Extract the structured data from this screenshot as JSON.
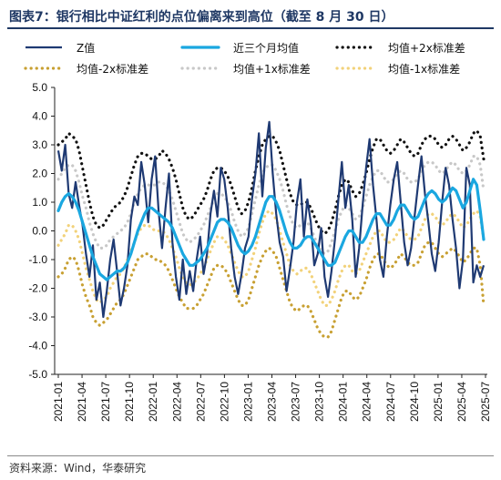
{
  "header": {
    "figure_label": "图表7：",
    "title": "银行相比中证红利的点位偏离来到高位（截至 8 月 30 日）"
  },
  "footer": {
    "source": "资料来源：Wind，华泰研究"
  },
  "chart_data": {
    "type": "line",
    "x_ticks": [
      "2021-01",
      "2021-04",
      "2021-07",
      "2021-10",
      "2022-01",
      "2022-04",
      "2022-07",
      "2022-10",
      "2023-01",
      "2023-04",
      "2023-07",
      "2023-10",
      "2024-01",
      "2024-04",
      "2024-07",
      "2024-10",
      "2025-01",
      "2025-04",
      "2025-07"
    ],
    "ylim": [
      -5.0,
      5.0
    ],
    "y_ticks": [
      "5.0",
      "4.0",
      "3.0",
      "2.0",
      "1.0",
      "0.0",
      "-1.0",
      "-2.0",
      "-3.0",
      "-4.0",
      "-5.0"
    ],
    "legend_position": "top",
    "colors": {
      "z": "#1f3a73",
      "ma3": "#1aa7e0",
      "plus2": "#111111",
      "minus2": "#c8a032",
      "plus1": "#c8c8c8",
      "minus1": "#f2d27a"
    },
    "series": [
      {
        "name": "Z值",
        "key": "z",
        "note": "",
        "values": [
          2.8,
          2.1,
          3.0,
          1.3,
          0.8,
          1.7,
          0.9,
          0.2,
          -0.8,
          -1.6,
          -0.5,
          -2.4,
          -1.8,
          -3.0,
          -2.1,
          -1.0,
          -0.3,
          -1.4,
          -2.6,
          -2.0,
          -1.2,
          0.4,
          1.2,
          0.9,
          2.4,
          1.6,
          0.3,
          1.8,
          2.6,
          0.7,
          -0.6,
          0.8,
          2.0,
          -0.4,
          -1.6,
          -2.4,
          -1.0,
          -2.2,
          -1.4,
          -2.1,
          -1.0,
          -0.2,
          -1.5,
          -0.8,
          0.6,
          1.4,
          0.5,
          2.2,
          1.8,
          0.8,
          -0.6,
          -1.6,
          -2.2,
          -1.5,
          -0.6,
          -0.2,
          1.1,
          2.0,
          3.4,
          1.2,
          2.9,
          3.8,
          2.0,
          0.6,
          -0.4,
          -0.9,
          -2.1,
          -1.3,
          -0.4,
          1.0,
          1.8,
          -0.2,
          1.1,
          0.3,
          -1.2,
          -0.8,
          0.1,
          -1.6,
          -2.3,
          -1.4,
          -0.3,
          1.1,
          2.4,
          0.8,
          1.6,
          0.4,
          -1.6,
          -0.6,
          0.9,
          2.2,
          3.2,
          1.6,
          0.4,
          -1.0,
          -1.6,
          -0.2,
          0.9,
          1.8,
          2.4,
          1.0,
          -0.4,
          -1.2,
          -0.6,
          0.5,
          1.6,
          2.6,
          1.3,
          0.3,
          -0.8,
          -1.4,
          -0.4,
          1.0,
          2.2,
          1.6,
          0.4,
          -0.6,
          -2.0,
          -1.0,
          2.2,
          1.6,
          -1.8,
          -1.2,
          -1.6,
          -1.2
        ]
      },
      {
        "name": "近三个月均值",
        "key": "ma3",
        "values": [
          0.7,
          1.0,
          1.2,
          1.3,
          1.2,
          1.0,
          0.7,
          0.3,
          -0.1,
          -0.5,
          -0.9,
          -1.2,
          -1.5,
          -1.6,
          -1.7,
          -1.6,
          -1.5,
          -1.4,
          -1.4,
          -1.3,
          -1.1,
          -0.8,
          -0.4,
          0.0,
          0.3,
          0.6,
          0.8,
          0.8,
          0.7,
          0.6,
          0.5,
          0.4,
          0.3,
          0.1,
          -0.2,
          -0.5,
          -0.8,
          -1.0,
          -1.2,
          -1.2,
          -1.1,
          -1.0,
          -0.8,
          -0.6,
          -0.3,
          0.0,
          0.3,
          0.4,
          0.4,
          0.3,
          0.1,
          -0.2,
          -0.5,
          -0.7,
          -0.8,
          -0.7,
          -0.5,
          -0.2,
          0.2,
          0.6,
          1.0,
          1.2,
          1.2,
          1.0,
          0.7,
          0.3,
          -0.1,
          -0.4,
          -0.6,
          -0.6,
          -0.5,
          -0.3,
          -0.2,
          -0.2,
          -0.4,
          -0.6,
          -0.8,
          -1.0,
          -1.2,
          -1.2,
          -1.1,
          -0.8,
          -0.5,
          -0.2,
          0.0,
          0.0,
          -0.2,
          -0.4,
          -0.4,
          -0.2,
          0.1,
          0.4,
          0.6,
          0.6,
          0.4,
          0.2,
          0.2,
          0.4,
          0.7,
          0.9,
          0.9,
          0.7,
          0.5,
          0.4,
          0.5,
          0.8,
          1.1,
          1.3,
          1.4,
          1.3,
          1.1,
          1.0,
          1.1,
          1.3,
          1.5,
          1.4,
          1.1,
          0.8,
          1.0,
          1.4,
          1.8,
          1.6,
          0.7,
          -0.3
        ]
      },
      {
        "name": "均值+2x标准差",
        "key": "plus2",
        "values": [
          3.0,
          3.1,
          3.2,
          3.4,
          3.3,
          3.2,
          2.8,
          2.2,
          1.6,
          1.0,
          0.5,
          0.2,
          0.1,
          0.2,
          0.4,
          0.6,
          0.8,
          0.9,
          1.0,
          1.2,
          1.5,
          1.9,
          2.3,
          2.6,
          2.7,
          2.7,
          2.6,
          2.5,
          2.5,
          2.6,
          2.8,
          2.7,
          2.5,
          2.2,
          1.8,
          1.3,
          0.8,
          0.5,
          0.4,
          0.5,
          0.7,
          0.9,
          1.1,
          1.4,
          1.8,
          2.1,
          2.2,
          2.2,
          2.1,
          1.9,
          1.6,
          1.2,
          0.8,
          0.6,
          0.7,
          1.0,
          1.5,
          2.1,
          2.6,
          3.0,
          3.2,
          3.3,
          3.3,
          3.1,
          2.8,
          2.3,
          1.8,
          1.3,
          1.0,
          0.9,
          0.9,
          1.0,
          1.0,
          0.8,
          0.5,
          0.2,
          0.0,
          -0.1,
          0.0,
          0.3,
          0.7,
          1.2,
          1.6,
          1.8,
          1.7,
          1.4,
          1.2,
          1.3,
          1.6,
          2.0,
          2.5,
          2.9,
          3.2,
          3.2,
          3.0,
          2.8,
          2.7,
          2.8,
          3.0,
          3.2,
          3.1,
          2.9,
          2.7,
          2.6,
          2.7,
          3.0,
          3.2,
          3.3,
          3.3,
          3.2,
          3.0,
          2.9,
          3.0,
          3.2,
          3.3,
          3.2,
          3.0,
          2.8,
          2.9,
          3.1,
          3.4,
          3.5,
          3.3,
          2.5
        ]
      },
      {
        "name": "均值+1x标准差",
        "key": "plus1",
        "values": [
          1.8,
          2.0,
          2.2,
          2.3,
          2.3,
          2.1,
          1.7,
          1.2,
          0.8,
          0.3,
          -0.1,
          -0.4,
          -0.6,
          -0.6,
          -0.5,
          -0.3,
          -0.2,
          -0.1,
          0.0,
          0.1,
          0.3,
          0.6,
          1.0,
          1.3,
          1.5,
          1.6,
          1.6,
          1.6,
          1.6,
          1.7,
          1.7,
          1.6,
          1.4,
          1.1,
          0.7,
          0.3,
          -0.1,
          -0.3,
          -0.4,
          -0.3,
          -0.2,
          0.0,
          0.2,
          0.5,
          0.8,
          1.1,
          1.3,
          1.3,
          1.2,
          1.0,
          0.7,
          0.3,
          0.0,
          -0.2,
          -0.1,
          0.1,
          0.6,
          1.1,
          1.6,
          2.0,
          2.2,
          2.3,
          2.3,
          2.1,
          1.8,
          1.4,
          0.9,
          0.5,
          0.2,
          0.1,
          0.2,
          0.3,
          0.3,
          0.1,
          -0.2,
          -0.5,
          -0.7,
          -0.8,
          -0.7,
          -0.4,
          0.0,
          0.4,
          0.7,
          0.9,
          0.8,
          0.6,
          0.4,
          0.5,
          0.8,
          1.2,
          1.6,
          1.9,
          2.1,
          2.1,
          1.9,
          1.7,
          1.7,
          1.8,
          2.0,
          2.1,
          2.0,
          1.8,
          1.7,
          1.7,
          1.8,
          2.1,
          2.3,
          2.4,
          2.4,
          2.3,
          2.1,
          2.0,
          2.1,
          2.3,
          2.4,
          2.3,
          2.1,
          2.0,
          2.1,
          2.3,
          2.6,
          2.6,
          2.3,
          1.4
        ]
      },
      {
        "name": "均值-1x标准差",
        "key": "minus1",
        "values": [
          -0.5,
          -0.3,
          -0.1,
          0.2,
          0.2,
          0.0,
          -0.3,
          -0.8,
          -1.3,
          -1.7,
          -2.1,
          -2.4,
          -2.5,
          -2.4,
          -2.3,
          -2.0,
          -1.8,
          -1.6,
          -1.5,
          -1.3,
          -1.0,
          -0.7,
          -0.4,
          -0.1,
          0.1,
          0.2,
          0.2,
          0.1,
          0.0,
          0.0,
          0.0,
          -0.1,
          -0.3,
          -0.6,
          -0.9,
          -1.3,
          -1.6,
          -1.8,
          -1.9,
          -1.8,
          -1.7,
          -1.5,
          -1.3,
          -1.0,
          -0.7,
          -0.4,
          -0.2,
          -0.2,
          -0.3,
          -0.5,
          -0.8,
          -1.1,
          -1.4,
          -1.6,
          -1.6,
          -1.4,
          -1.0,
          -0.6,
          -0.1,
          0.3,
          0.6,
          0.7,
          0.6,
          0.4,
          0.0,
          -0.4,
          -0.8,
          -1.2,
          -1.4,
          -1.5,
          -1.4,
          -1.3,
          -1.3,
          -1.5,
          -1.8,
          -2.1,
          -2.4,
          -2.6,
          -2.6,
          -2.4,
          -2.1,
          -1.7,
          -1.4,
          -1.2,
          -1.2,
          -1.4,
          -1.5,
          -1.4,
          -1.1,
          -0.8,
          -0.5,
          -0.2,
          0.0,
          0.0,
          -0.2,
          -0.4,
          -0.4,
          -0.3,
          -0.1,
          0.1,
          0.0,
          -0.2,
          -0.3,
          -0.3,
          -0.2,
          0.1,
          0.4,
          0.6,
          0.6,
          0.5,
          0.3,
          0.2,
          0.3,
          0.5,
          0.6,
          0.5,
          0.3,
          0.1,
          0.2,
          0.4,
          0.6,
          0.7,
          0.5,
          -0.3
        ]
      },
      {
        "name": "均值-2x标准差",
        "key": "minus2",
        "values": [
          -1.6,
          -1.5,
          -1.3,
          -1.0,
          -0.9,
          -1.0,
          -1.4,
          -1.9,
          -2.3,
          -2.6,
          -3.0,
          -3.2,
          -3.3,
          -3.2,
          -3.1,
          -2.9,
          -2.7,
          -2.5,
          -2.4,
          -2.2,
          -1.9,
          -1.6,
          -1.3,
          -1.0,
          -0.9,
          -0.8,
          -0.8,
          -0.9,
          -1.0,
          -1.0,
          -1.1,
          -1.2,
          -1.4,
          -1.7,
          -2.0,
          -2.3,
          -2.5,
          -2.7,
          -2.7,
          -2.7,
          -2.6,
          -2.4,
          -2.2,
          -1.9,
          -1.6,
          -1.3,
          -1.2,
          -1.2,
          -1.3,
          -1.5,
          -1.8,
          -2.1,
          -2.4,
          -2.6,
          -2.6,
          -2.4,
          -2.0,
          -1.6,
          -1.2,
          -0.9,
          -0.7,
          -0.6,
          -0.7,
          -0.9,
          -1.3,
          -1.7,
          -2.1,
          -2.5,
          -2.7,
          -2.8,
          -2.7,
          -2.6,
          -2.6,
          -2.8,
          -3.1,
          -3.4,
          -3.6,
          -3.7,
          -3.7,
          -3.5,
          -3.1,
          -2.7,
          -2.3,
          -2.1,
          -2.1,
          -2.3,
          -2.4,
          -2.3,
          -2.0,
          -1.7,
          -1.3,
          -1.0,
          -0.8,
          -0.8,
          -1.0,
          -1.2,
          -1.3,
          -1.2,
          -1.0,
          -0.8,
          -0.9,
          -1.1,
          -1.2,
          -1.2,
          -1.1,
          -0.8,
          -0.5,
          -0.4,
          -0.4,
          -0.6,
          -0.8,
          -0.9,
          -0.8,
          -0.7,
          -0.6,
          -0.7,
          -0.9,
          -1.1,
          -1.0,
          -0.8,
          -0.6,
          -0.6,
          -1.2,
          -2.6
        ]
      }
    ]
  }
}
